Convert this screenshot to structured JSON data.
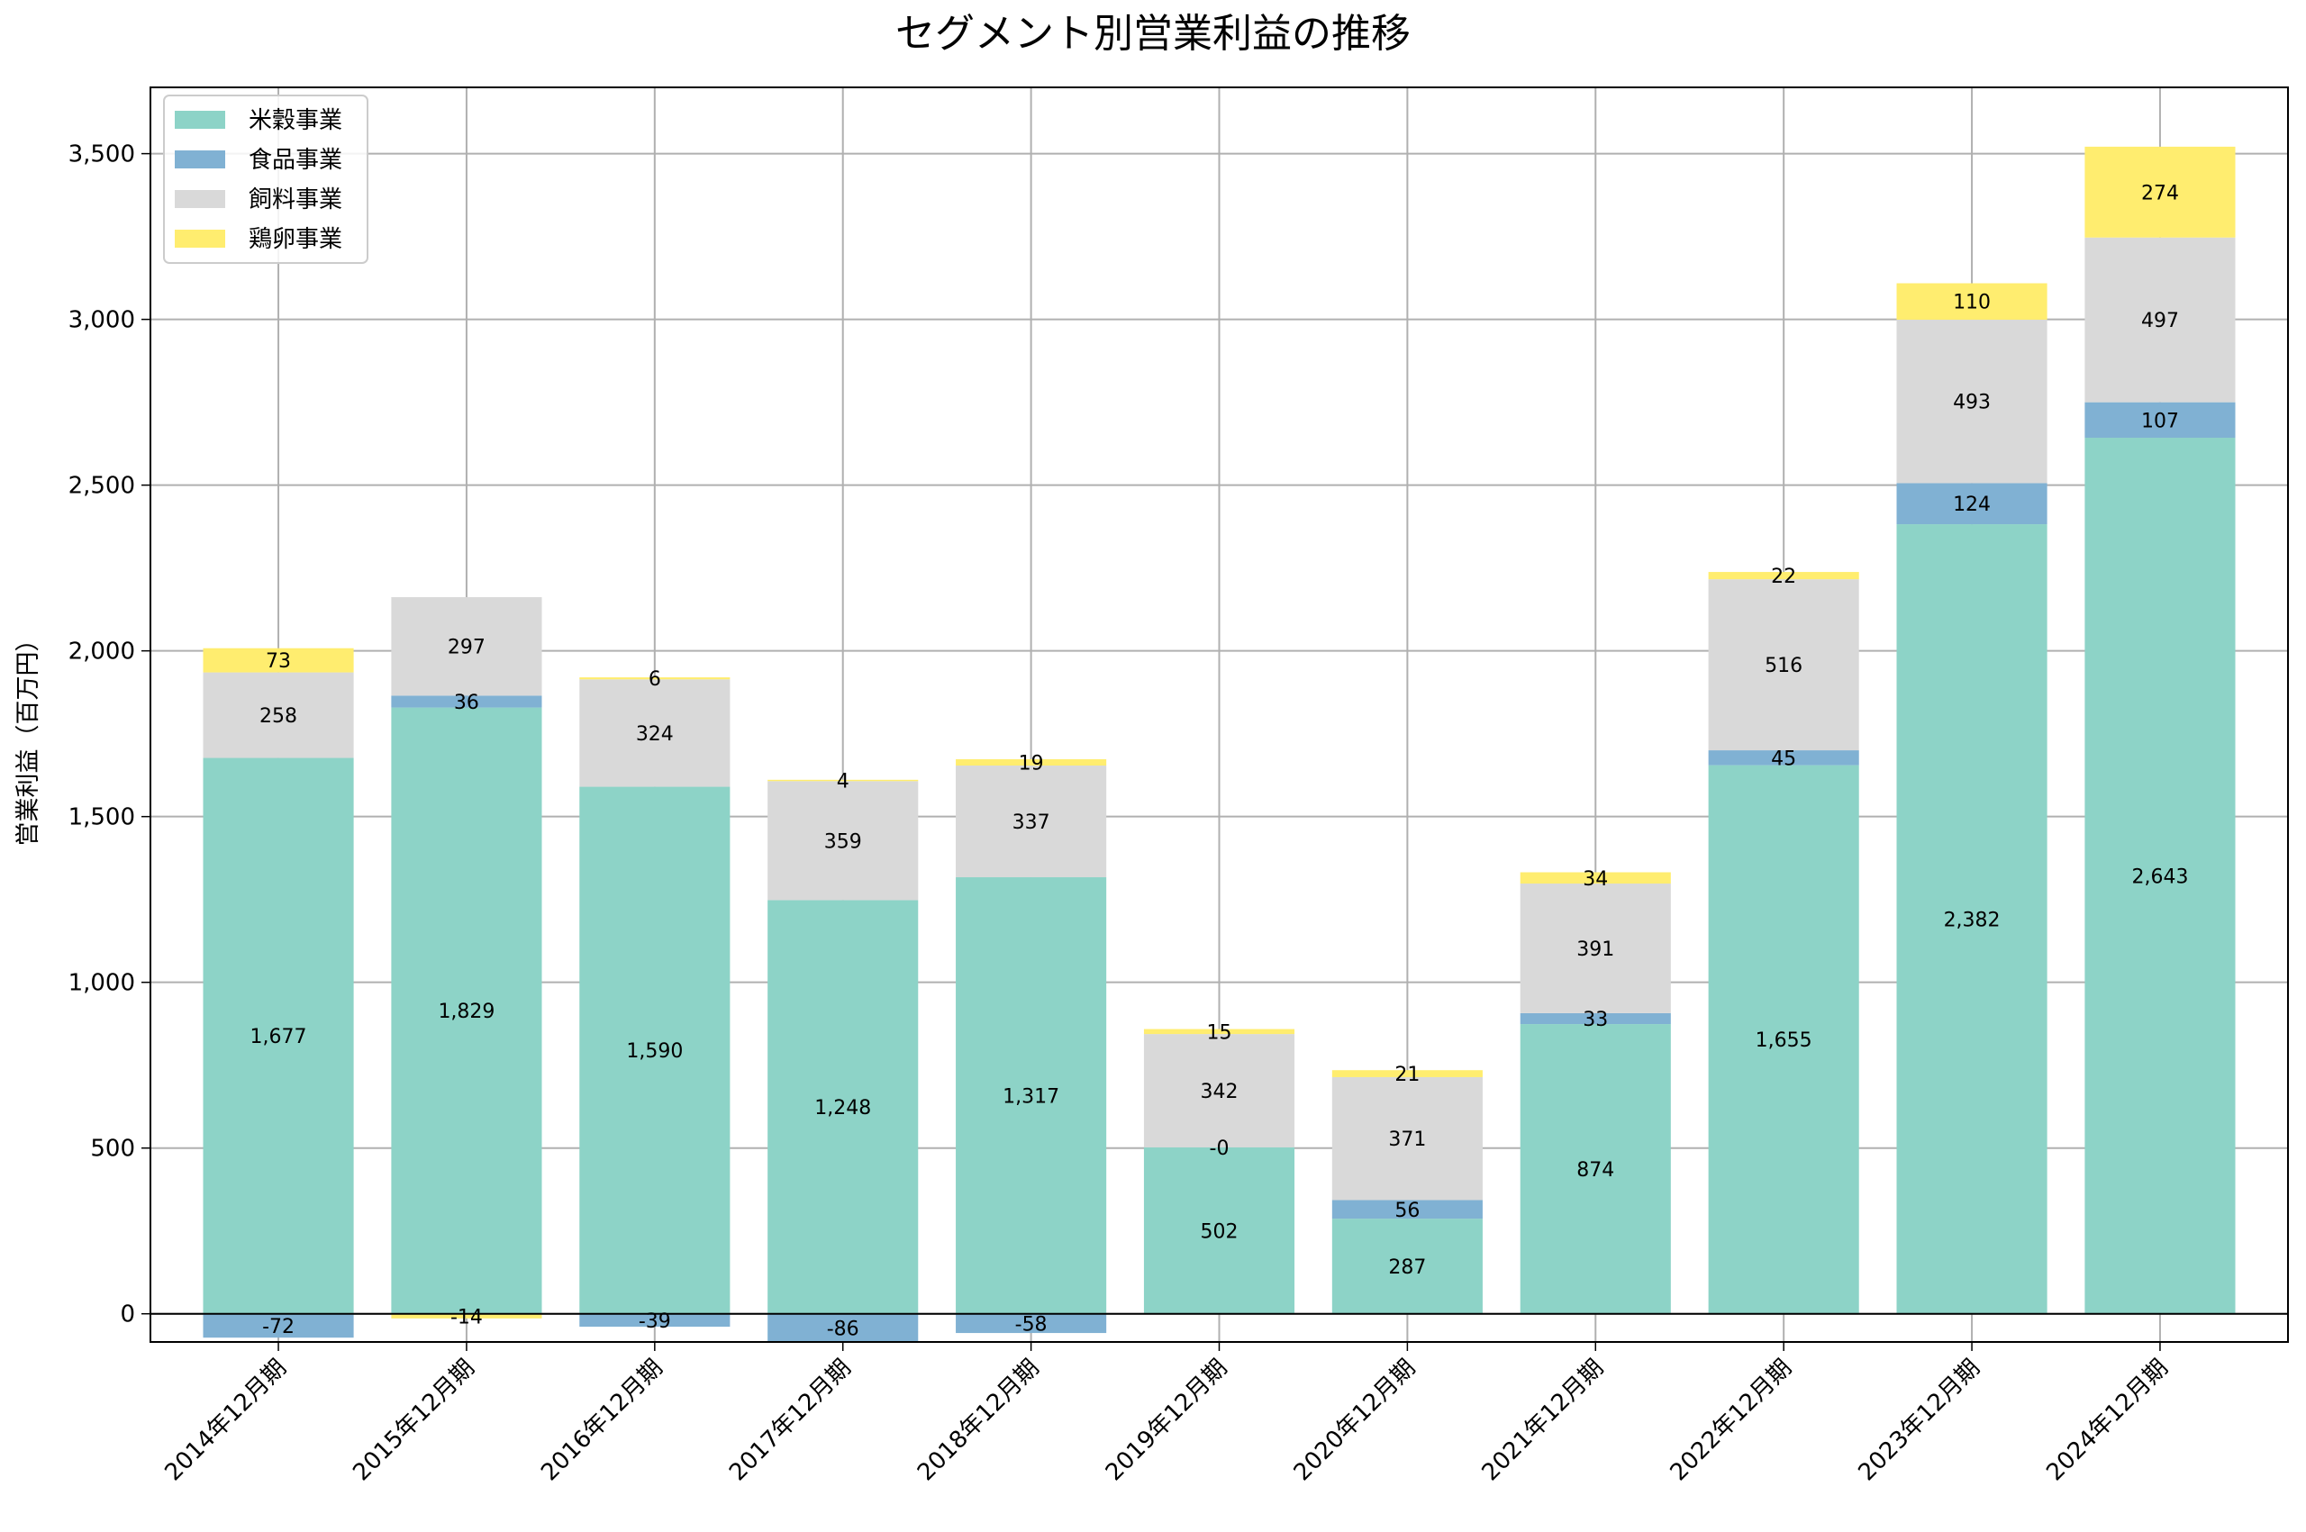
{
  "chart_data": {
    "type": "bar",
    "stacked": true,
    "title": "セグメント別営業利益の推移",
    "xlabel": "",
    "ylabel": "営業利益（百万円）",
    "ylim": [
      -85,
      3700
    ],
    "yticks": [
      0,
      500,
      1000,
      1500,
      2000,
      2500,
      3000,
      3500
    ],
    "grid": true,
    "legend_position": "top-left",
    "categories": [
      "2014年12月期",
      "2015年12月期",
      "2016年12月期",
      "2017年12月期",
      "2018年12月期",
      "2019年12月期",
      "2020年12月期",
      "2021年12月期",
      "2022年12月期",
      "2023年12月期",
      "2024年12月期"
    ],
    "series": [
      {
        "name": "米穀事業",
        "color": "#8dd3c7",
        "values": [
          1677,
          1829,
          1590,
          1248,
          1317,
          502,
          287,
          874,
          1655,
          2382,
          2643
        ],
        "labels": [
          "1,677",
          "1,829",
          "1,590",
          "1,248",
          "1,317",
          "502",
          "287",
          "874",
          "1,655",
          "2,382",
          "2,643"
        ]
      },
      {
        "name": "食品事業",
        "color": "#80b1d3",
        "values": [
          -72,
          36,
          -39,
          -86,
          -58,
          0,
          56,
          33,
          45,
          124,
          107
        ],
        "labels": [
          "-72",
          "36",
          "-39",
          "-86",
          "-58",
          "-0",
          "56",
          "33",
          "45",
          "124",
          "107"
        ]
      },
      {
        "name": "飼料事業",
        "color": "#d9d9d9",
        "values": [
          258,
          297,
          324,
          359,
          337,
          342,
          371,
          391,
          516,
          493,
          497
        ],
        "labels": [
          "258",
          "297",
          "324",
          "359",
          "337",
          "342",
          "371",
          "391",
          "516",
          "493",
          "497"
        ]
      },
      {
        "name": "鶏卵事業",
        "color": "#ffed6f",
        "values": [
          73,
          -14,
          6,
          4,
          19,
          15,
          21,
          34,
          22,
          110,
          274
        ],
        "labels": [
          "73",
          "-14",
          "6",
          "4",
          "19",
          "15",
          "21",
          "34",
          "22",
          "110",
          "274"
        ]
      }
    ]
  }
}
